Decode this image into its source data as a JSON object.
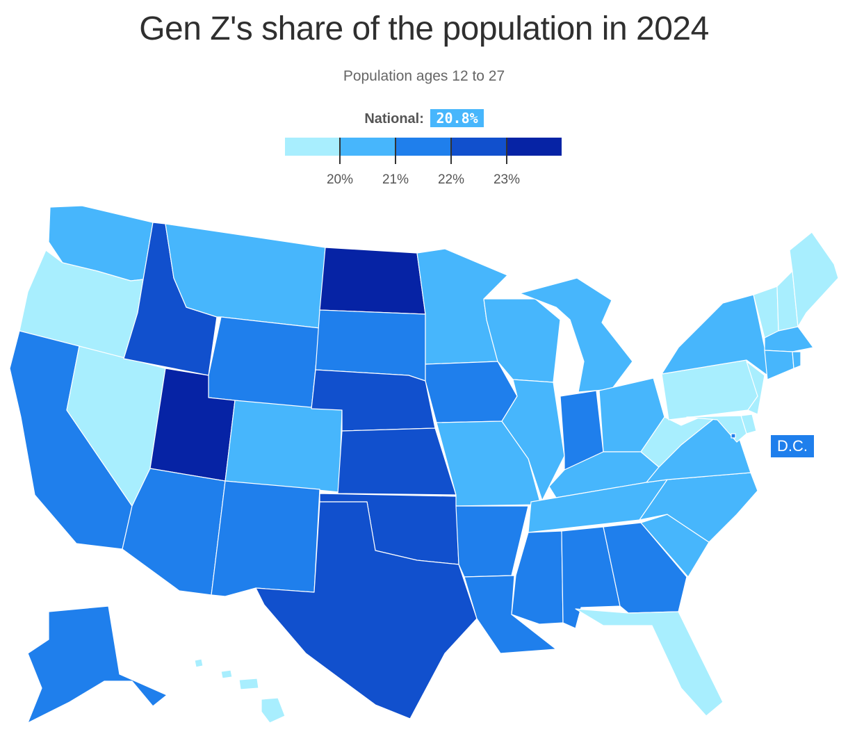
{
  "title": "Gen Z's share of the population in 2024",
  "subtitle": "Population ages 12 to 27",
  "national": {
    "label": "National:",
    "value": "20.8%"
  },
  "legend": {
    "colors": [
      "#a8eefe",
      "#47b6fc",
      "#1f7fec",
      "#1150cd",
      "#0623a5"
    ],
    "ticks": [
      "20%",
      "21%",
      "22%",
      "23%"
    ]
  },
  "dc_label": "D.C.",
  "map_data": {
    "type": "choropleth",
    "bins": [
      "<20%",
      "20-21%",
      "21-22%",
      "22-23%",
      ">23%"
    ],
    "states": {
      "WA": 1,
      "OR": 0,
      "CA": 2,
      "NV": 0,
      "ID": 3,
      "MT": 1,
      "WY": 2,
      "UT": 4,
      "AZ": 2,
      "CO": 1,
      "NM": 2,
      "ND": 4,
      "SD": 2,
      "NE": 3,
      "KS": 3,
      "OK": 3,
      "TX": 3,
      "MN": 1,
      "IA": 2,
      "MO": 1,
      "AR": 2,
      "LA": 2,
      "WI": 1,
      "IL": 1,
      "MI": 1,
      "IN": 2,
      "OH": 1,
      "KY": 1,
      "TN": 1,
      "MS": 2,
      "AL": 2,
      "GA": 2,
      "FL": 0,
      "SC": 1,
      "NC": 1,
      "VA": 1,
      "WV": 0,
      "PA": 0,
      "NY": 1,
      "VT": 0,
      "NH": 0,
      "ME": 0,
      "MA": 1,
      "CT": 1,
      "RI": 1,
      "NJ": 0,
      "DE": 0,
      "MD": 0,
      "DC": 2,
      "AK": 2,
      "HI": 0
    }
  }
}
